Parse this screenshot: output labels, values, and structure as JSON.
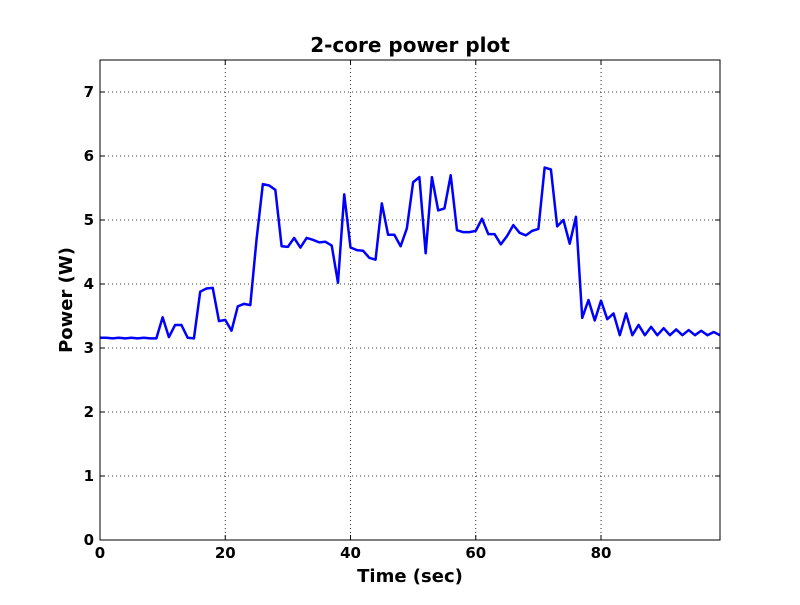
{
  "chart_data": {
    "type": "line",
    "title": "2-core power plot",
    "xlabel": "Time (sec)",
    "ylabel": "Power (W)",
    "xlim": [
      0,
      99
    ],
    "ylim": [
      0,
      7.5
    ],
    "xticks": [
      0,
      20,
      40,
      60,
      80
    ],
    "yticks": [
      0,
      1,
      2,
      3,
      4,
      5,
      6,
      7
    ],
    "grid": "on (dotted)",
    "legend": "none",
    "series": [
      {
        "color": "#0000ff",
        "x": [
          0,
          1,
          2,
          3,
          4,
          5,
          6,
          7,
          8,
          9,
          10,
          11,
          12,
          13,
          14,
          15,
          16,
          17,
          18,
          19,
          20,
          21,
          22,
          23,
          24,
          25,
          26,
          27,
          28,
          29,
          30,
          31,
          32,
          33,
          34,
          35,
          36,
          37,
          38,
          39,
          40,
          41,
          42,
          43,
          44,
          45,
          46,
          47,
          48,
          49,
          50,
          51,
          52,
          53,
          54,
          55,
          56,
          57,
          58,
          59,
          60,
          61,
          62,
          63,
          64,
          65,
          66,
          67,
          68,
          69,
          70,
          71,
          72,
          73,
          74,
          75,
          76,
          77,
          78,
          79,
          80,
          81,
          82,
          83,
          84,
          85,
          86,
          87,
          88,
          89,
          90,
          91,
          92,
          93,
          94,
          95,
          96,
          97,
          98,
          99
        ],
        "y": [
          3.16,
          3.16,
          3.15,
          3.16,
          3.15,
          3.16,
          3.15,
          3.16,
          3.15,
          3.15,
          3.48,
          3.17,
          3.36,
          3.36,
          3.16,
          3.15,
          3.88,
          3.93,
          3.94,
          3.42,
          3.44,
          3.27,
          3.65,
          3.69,
          3.67,
          4.7,
          5.56,
          5.54,
          5.47,
          4.59,
          4.58,
          4.72,
          4.57,
          4.72,
          4.69,
          4.65,
          4.66,
          4.6,
          4.02,
          5.4,
          4.57,
          4.53,
          4.52,
          4.41,
          4.38,
          5.26,
          4.77,
          4.77,
          4.59,
          4.87,
          5.59,
          5.67,
          4.48,
          5.67,
          5.15,
          5.18,
          5.7,
          4.84,
          4.81,
          4.81,
          4.83,
          5.02,
          4.78,
          4.78,
          4.62,
          4.75,
          4.92,
          4.8,
          4.76,
          4.83,
          4.86,
          5.82,
          5.79,
          4.9,
          5.0,
          4.63,
          5.05,
          3.47,
          3.75,
          3.43,
          3.74,
          3.45,
          3.54,
          3.2,
          3.54,
          3.2,
          3.36,
          3.2,
          3.33,
          3.2,
          3.31,
          3.2,
          3.29,
          3.2,
          3.28,
          3.2,
          3.27,
          3.2,
          3.25,
          3.2
        ]
      }
    ]
  }
}
